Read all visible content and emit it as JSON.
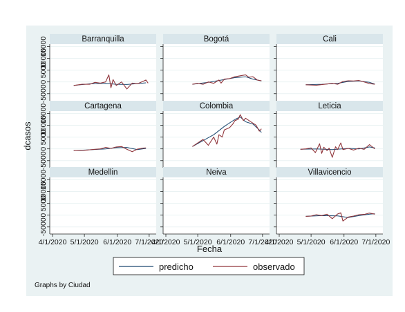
{
  "chart_data": {
    "type": "line",
    "layout": "small-multiples",
    "xlabel": "Fecha",
    "ylabel": "dcasos",
    "x_tick_labels": [
      "4/1/2020",
      "5/1/2020",
      "6/1/2020",
      "7/1/2020"
    ],
    "x_ticks_days": [
      0,
      30,
      61,
      91
    ],
    "xlim_days": [
      0,
      95
    ],
    "y_tick_labels": [
      "-5000",
      "0",
      "5000",
      "10000",
      "15000"
    ],
    "y_ticks": [
      -5000,
      0,
      5000,
      10000,
      15000
    ],
    "ylim": [
      -8000,
      16000
    ],
    "grid": true,
    "legend": {
      "placement": "bottom",
      "entries": [
        {
          "label": "predicho",
          "color": "#1a476f"
        },
        {
          "label": "observado",
          "color": "#90353b"
        }
      ]
    },
    "note": "Graphs by Ciudad",
    "colors": {
      "outer_background": "#eaf2f3",
      "panel_header": "#d9e6eb",
      "plot_background": "#ffffff",
      "grid": "#eaf2f3",
      "predicho": "#1a476f",
      "observado": "#90353b"
    },
    "panels": [
      {
        "title": "Barranquilla",
        "series": [
          {
            "name": "predicho",
            "x": [
              20,
              35,
              50,
              60,
              70,
              80,
              88
            ],
            "y": [
              -1500,
              -800,
              -600,
              -1000,
              -1100,
              -700,
              -400
            ]
          },
          {
            "name": "observado",
            "x": [
              20,
              28,
              35,
              40,
              45,
              50,
              53,
              55,
              57,
              60,
              62,
              65,
              70,
              75,
              80,
              85,
              88,
              90
            ],
            "y": [
              -1500,
              -1000,
              -1000,
              -200,
              -500,
              0,
              3000,
              -2500,
              1000,
              -1500,
              -900,
              0,
              -3000,
              -500,
              -800,
              200,
              800,
              -500
            ]
          }
        ]
      },
      {
        "title": "Bogotá",
        "series": [
          {
            "name": "predicho",
            "x": [
              25,
              40,
              55,
              65,
              75,
              82,
              90
            ],
            "y": [
              -1000,
              -200,
              1000,
              1800,
              2200,
              1200,
              400
            ]
          },
          {
            "name": "observado",
            "x": [
              25,
              30,
              35,
              40,
              45,
              50,
              52,
              55,
              60,
              65,
              70,
              75,
              78,
              82,
              86,
              90
            ],
            "y": [
              -1000,
              -600,
              -1000,
              0,
              -600,
              800,
              -500,
              1200,
              1400,
              2200,
              2600,
              3000,
              2000,
              2200,
              800,
              500
            ]
          }
        ]
      },
      {
        "title": "Cali",
        "series": [
          {
            "name": "predicho",
            "x": [
              25,
              40,
              55,
              65,
              75,
              85,
              90
            ],
            "y": [
              -1200,
              -1000,
              -600,
              200,
              400,
              -200,
              -900
            ]
          },
          {
            "name": "observado",
            "x": [
              25,
              35,
              45,
              50,
              55,
              60,
              65,
              70,
              75,
              80,
              85,
              90
            ],
            "y": [
              -1200,
              -1400,
              -900,
              -600,
              -1000,
              200,
              500,
              400,
              600,
              0,
              -700,
              -1000
            ]
          }
        ]
      },
      {
        "title": "Cartagena",
        "series": [
          {
            "name": "predicho",
            "x": [
              20,
              35,
              50,
              60,
              70,
              80,
              88
            ],
            "y": [
              -700,
              -400,
              0,
              500,
              600,
              -300,
              200
            ]
          },
          {
            "name": "observado",
            "x": [
              20,
              30,
              40,
              45,
              50,
              55,
              60,
              65,
              70,
              75,
              80,
              85,
              88
            ],
            "y": [
              -700,
              -600,
              -200,
              0,
              600,
              200,
              800,
              1000,
              -200,
              -1200,
              -100,
              300,
              400
            ]
          }
        ]
      },
      {
        "title": "Colombia",
        "series": [
          {
            "name": "predicho",
            "x": [
              25,
              35,
              45,
              55,
              65,
              70,
              75,
              82,
              88,
              90
            ],
            "y": [
              1000,
              3500,
              6000,
              9500,
              12500,
              13500,
              11500,
              10500,
              8000,
              7000
            ]
          },
          {
            "name": "observado",
            "x": [
              25,
              30,
              35,
              40,
              45,
              48,
              50,
              53,
              55,
              60,
              63,
              65,
              68,
              70,
              73,
              75,
              80,
              85,
              88,
              90
            ],
            "y": [
              1000,
              2500,
              4000,
              1500,
              5000,
              2000,
              6000,
              5000,
              8000,
              9000,
              10500,
              12000,
              12500,
              14500,
              12000,
              13000,
              11500,
              10000,
              7500,
              8500
            ]
          }
        ]
      },
      {
        "title": "Leticia",
        "series": [
          {
            "name": "predicho",
            "x": [
              20,
              35,
              50,
              65,
              75,
              85,
              90
            ],
            "y": [
              -200,
              0,
              -300,
              200,
              0,
              800,
              400
            ]
          },
          {
            "name": "observado",
            "x": [
              20,
              25,
              30,
              34,
              38,
              40,
              42,
              45,
              47,
              50,
              53,
              55,
              58,
              60,
              65,
              70,
              75,
              80,
              85,
              90
            ],
            "y": [
              -200,
              0,
              400,
              -1600,
              2200,
              -1900,
              700,
              -700,
              300,
              -3600,
              900,
              -300,
              2500,
              -300,
              200,
              -500,
              300,
              -200,
              1800,
              0
            ]
          }
        ]
      },
      {
        "title": "Medellin",
        "series": []
      },
      {
        "title": "Neiva",
        "series": []
      },
      {
        "title": "Villavicencio",
        "series": [
          {
            "name": "predicho",
            "x": [
              25,
              40,
              55,
              65,
              75,
              85,
              90
            ],
            "y": [
              -500,
              -200,
              -300,
              -1000,
              -200,
              400,
              600
            ]
          },
          {
            "name": "observado",
            "x": [
              25,
              30,
              35,
              40,
              45,
              50,
              55,
              58,
              60,
              63,
              65,
              70,
              75,
              80,
              85,
              90
            ],
            "y": [
              -500,
              -400,
              200,
              -200,
              400,
              -1500,
              500,
              1000,
              -2500,
              -1500,
              -800,
              -400,
              200,
              300,
              900,
              400
            ]
          }
        ]
      }
    ]
  }
}
